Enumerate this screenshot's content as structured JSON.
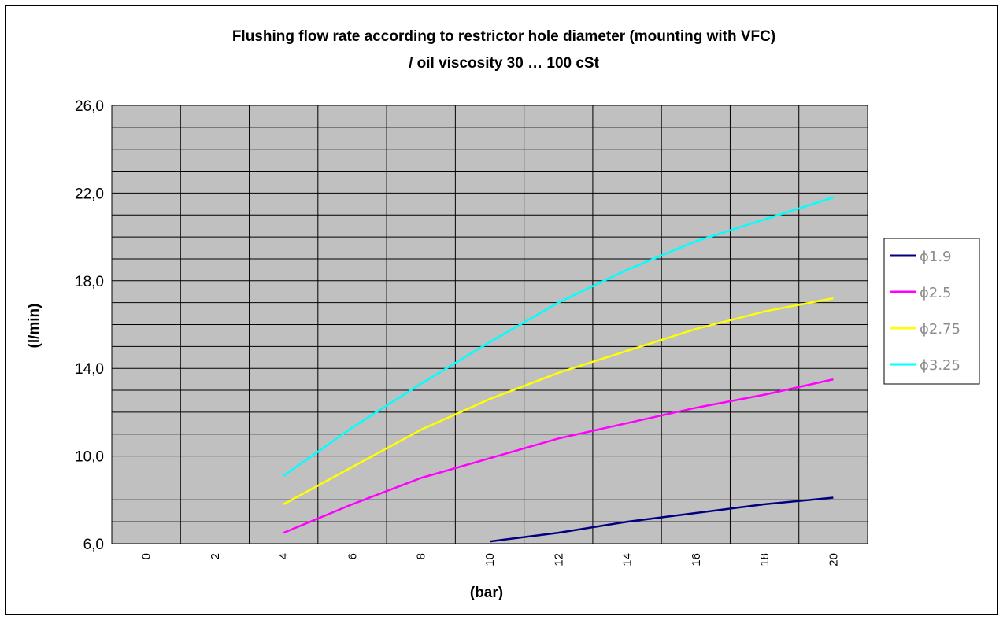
{
  "chart_data": {
    "type": "line",
    "title": "Flushing flow rate according to restrictor hole diameter   (mounting with VFC)",
    "subtitle": "/ oil viscosity 30 … 100 cSt",
    "xlabel": "(bar)",
    "ylabel": "(l/min)",
    "categories": [
      "0",
      "2",
      "4",
      "6",
      "8",
      "10",
      "12",
      "14",
      "16",
      "18",
      "20"
    ],
    "y_ticks": [
      "26,0",
      "22,0",
      "18,0",
      "14,0",
      "10,0",
      "6,0"
    ],
    "ylim": [
      6,
      26
    ],
    "grid": true,
    "legend_position": "right",
    "plot_background": "#c0c0c0",
    "series": [
      {
        "name": "ϕ1.9",
        "color": "#000080",
        "x": [
          10,
          12,
          14,
          16,
          18,
          20
        ],
        "values": [
          6.1,
          6.5,
          7.0,
          7.4,
          7.8,
          8.1
        ]
      },
      {
        "name": "ϕ2.5",
        "color": "#ff00ff",
        "x": [
          4,
          6,
          8,
          10,
          12,
          14,
          16,
          18,
          20
        ],
        "values": [
          6.5,
          7.8,
          9.0,
          9.9,
          10.8,
          11.5,
          12.2,
          12.8,
          13.5
        ]
      },
      {
        "name": "ϕ2.75",
        "color": "#ffff00",
        "x": [
          4,
          6,
          8,
          10,
          12,
          14,
          16,
          18,
          20
        ],
        "values": [
          7.8,
          9.5,
          11.2,
          12.6,
          13.8,
          14.8,
          15.8,
          16.6,
          17.2
        ]
      },
      {
        "name": "ϕ3.25",
        "color": "#00ffff",
        "x": [
          4,
          6,
          8,
          10,
          12,
          14,
          16,
          18,
          20
        ],
        "values": [
          9.1,
          11.3,
          13.3,
          15.2,
          17.0,
          18.5,
          19.8,
          20.8,
          21.8
        ]
      }
    ]
  }
}
